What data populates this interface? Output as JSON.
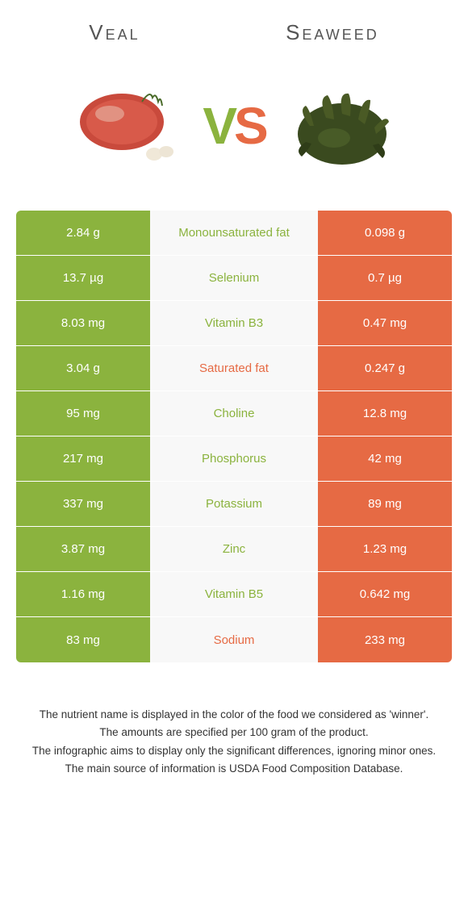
{
  "colors": {
    "left_bg": "#8bb33e",
    "right_bg": "#e66a44",
    "left_text": "#8bb33e",
    "right_text": "#e66a44",
    "cell_text": "#ffffff",
    "page_bg": "#ffffff",
    "mid_bg": "#f8f8f8"
  },
  "header": {
    "left_title": "Veal",
    "right_title": "Seaweed",
    "vs_v": "V",
    "vs_s": "S"
  },
  "rows": [
    {
      "left": "2.84 g",
      "label": "Monounsaturated fat",
      "right": "0.098 g",
      "winner": "left"
    },
    {
      "left": "13.7 µg",
      "label": "Selenium",
      "right": "0.7 µg",
      "winner": "left"
    },
    {
      "left": "8.03 mg",
      "label": "Vitamin B3",
      "right": "0.47 mg",
      "winner": "left"
    },
    {
      "left": "3.04 g",
      "label": "Saturated fat",
      "right": "0.247 g",
      "winner": "right"
    },
    {
      "left": "95 mg",
      "label": "Choline",
      "right": "12.8 mg",
      "winner": "left"
    },
    {
      "left": "217 mg",
      "label": "Phosphorus",
      "right": "42 mg",
      "winner": "left"
    },
    {
      "left": "337 mg",
      "label": "Potassium",
      "right": "89 mg",
      "winner": "left"
    },
    {
      "left": "3.87 mg",
      "label": "Zinc",
      "right": "1.23 mg",
      "winner": "left"
    },
    {
      "left": "1.16 mg",
      "label": "Vitamin B5",
      "right": "0.642 mg",
      "winner": "left"
    },
    {
      "left": "83 mg",
      "label": "Sodium",
      "right": "233 mg",
      "winner": "right"
    }
  ],
  "footnotes": {
    "line1": "The nutrient name is displayed in the color of the food we considered as 'winner'.",
    "line2": "The amounts are specified per 100 gram of the product.",
    "line3": "The infographic aims to display only the significant differences, ignoring minor ones.",
    "line4": "The main source of information is USDA Food Composition Database."
  }
}
